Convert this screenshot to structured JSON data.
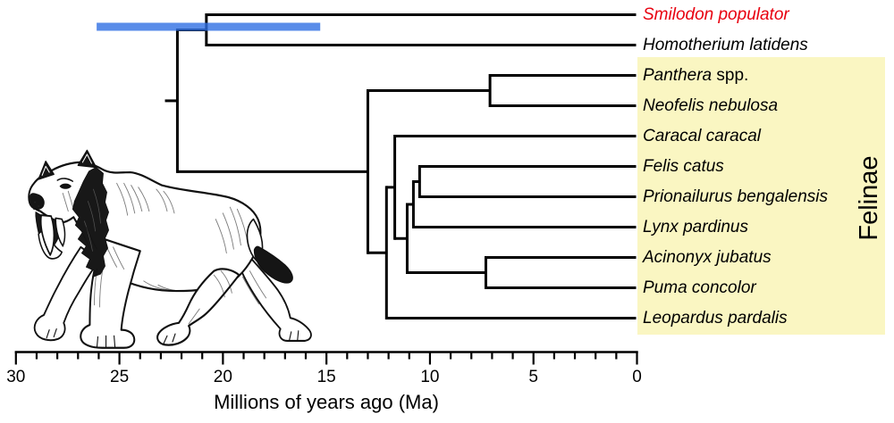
{
  "clade_label": "Felinae",
  "taxa": [
    {
      "italic": "Smilodon populator",
      "regular": "",
      "color": "#e8000f"
    },
    {
      "italic": "Homotherium latidens",
      "regular": "",
      "color": "#000000"
    },
    {
      "italic": "Panthera",
      "regular": " spp.",
      "color": "#000000"
    },
    {
      "italic": "Neofelis nebulosa",
      "regular": "",
      "color": "#000000"
    },
    {
      "italic": "Caracal caracal",
      "regular": "",
      "color": "#000000"
    },
    {
      "italic": "Felis catus",
      "regular": "",
      "color": "#000000"
    },
    {
      "italic": "Prionailurus bengalensis",
      "regular": "",
      "color": "#000000"
    },
    {
      "italic": "Lynx pardinus",
      "regular": "",
      "color": "#000000"
    },
    {
      "italic": "Acinonyx jubatus",
      "regular": "",
      "color": "#000000"
    },
    {
      "italic": "Puma concolor",
      "regular": "",
      "color": "#000000"
    },
    {
      "italic": "Leopardus pardalis",
      "regular": "",
      "color": "#000000"
    }
  ],
  "axis": {
    "title": "Millions of years ago (Ma)",
    "major_tick_labels": [
      "30",
      "25",
      "20",
      "15",
      "10",
      "5",
      "0"
    ],
    "range_ma": [
      30,
      0
    ],
    "major_tick_interval_ma": 5,
    "minor_tick_interval_ma": 1
  },
  "tree": {
    "root_stub_ma": 22.8,
    "topology": {
      "ma": 22.2,
      "children": [
        {
          "ma": 20.8,
          "children": [
            {
              "tip": 0
            },
            {
              "tip": 1
            }
          ]
        },
        {
          "ma": 13.0,
          "children": [
            {
              "ma": 7.1,
              "children": [
                {
                  "tip": 2
                },
                {
                  "tip": 3
                }
              ]
            },
            {
              "ma": 12.1,
              "children": [
                {
                  "ma": 11.7,
                  "children": [
                    {
                      "tip": 4
                    },
                    {
                      "ma": 11.1,
                      "children": [
                        {
                          "ma": 10.8,
                          "children": [
                            {
                              "ma": 10.5,
                              "children": [
                                {
                                  "tip": 5
                                },
                                {
                                  "tip": 6
                                }
                              ]
                            },
                            {
                              "tip": 7
                            }
                          ]
                        },
                        {
                          "ma": 7.3,
                          "children": [
                            {
                              "tip": 8
                            },
                            {
                              "tip": 9
                            }
                          ]
                        }
                      ]
                    }
                  ]
                },
                {
                  "tip": 10
                }
              ]
            }
          ]
        }
      ]
    }
  },
  "blue_bar": {
    "from_ma": 26.1,
    "to_ma": 15.3,
    "color": "#2f6fe4",
    "opacity": 0.8
  },
  "colors": {
    "highlight_box": "#faf6c2",
    "line": "#000000",
    "background": "#ffffff"
  }
}
